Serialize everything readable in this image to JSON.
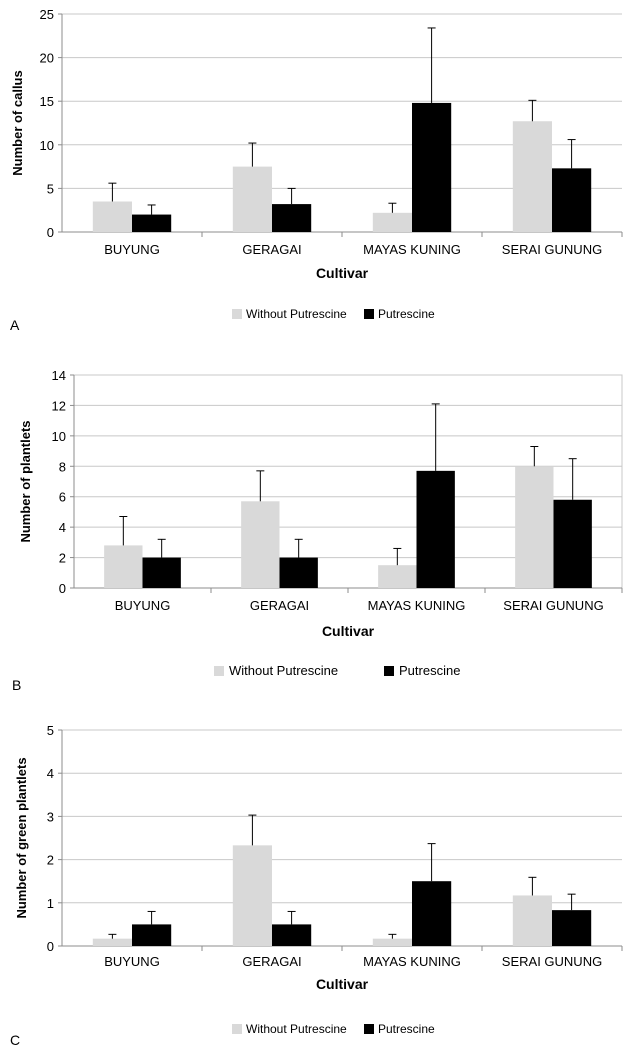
{
  "colors": {
    "without_putrescine": "#d9d9d9",
    "putrescine": "#000000",
    "grid": "#c8c8c8",
    "axis": "#8c8c8c",
    "error_bar": "#000000"
  },
  "chart_data": [
    {
      "type": "bar",
      "panel_label": "A",
      "categories": [
        "BUYUNG",
        "GERAGAI",
        "MAYAS KUNING",
        "SERAI GUNUNG"
      ],
      "xlabel": "Cultivar",
      "ylabel": "Number of callus",
      "ylim": [
        0,
        25
      ],
      "yticks": [
        0,
        5,
        10,
        15,
        20,
        25
      ],
      "grid": true,
      "legend_position": "bottom",
      "series": [
        {
          "name": "Without Putrescine",
          "values": [
            3.5,
            7.5,
            2.2,
            12.7
          ],
          "errors": [
            2.1,
            2.7,
            1.1,
            2.4
          ]
        },
        {
          "name": "Putrescine",
          "values": [
            2.0,
            3.2,
            14.8,
            7.3
          ],
          "errors": [
            1.1,
            1.8,
            8.6,
            3.3
          ]
        }
      ]
    },
    {
      "type": "bar",
      "panel_label": "B",
      "categories": [
        "BUYUNG",
        "GERAGAI",
        "MAYAS KUNING",
        "SERAI GUNUNG"
      ],
      "xlabel": "Cultivar",
      "ylabel": "Number of plantlets",
      "ylim": [
        0,
        14
      ],
      "yticks": [
        0,
        2,
        4,
        6,
        8,
        10,
        12,
        14
      ],
      "grid": true,
      "legend_position": "bottom",
      "series": [
        {
          "name": "Without Putrescine",
          "values": [
            2.8,
            5.7,
            1.5,
            8.0
          ],
          "errors": [
            1.9,
            2.0,
            1.1,
            1.3
          ]
        },
        {
          "name": "Putrescine",
          "values": [
            2.0,
            2.0,
            7.7,
            5.8
          ],
          "errors": [
            1.2,
            1.2,
            4.4,
            2.7
          ]
        }
      ]
    },
    {
      "type": "bar",
      "panel_label": "C",
      "categories": [
        "BUYUNG",
        "GERAGAI",
        "MAYAS KUNING",
        "SERAI GUNUNG"
      ],
      "xlabel": "Cultivar",
      "ylabel": "Number of green plantlets",
      "ylim": [
        0,
        5
      ],
      "yticks": [
        0,
        1,
        2,
        3,
        4,
        5
      ],
      "grid": true,
      "legend_position": "bottom",
      "series": [
        {
          "name": "Without Putrescine",
          "values": [
            0.17,
            2.33,
            0.17,
            1.17
          ],
          "errors": [
            0.1,
            0.7,
            0.1,
            0.42
          ]
        },
        {
          "name": "Putrescine",
          "values": [
            0.5,
            0.5,
            1.5,
            0.83
          ],
          "errors": [
            0.3,
            0.3,
            0.87,
            0.37
          ]
        }
      ]
    }
  ]
}
